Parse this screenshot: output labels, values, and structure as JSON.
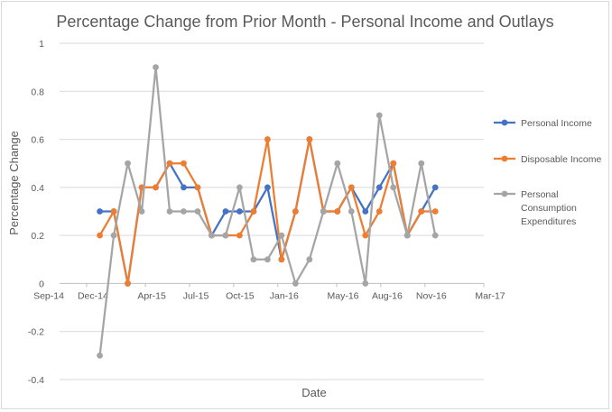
{
  "chart_data": {
    "type": "line",
    "title": "Percentage Change from Prior Month - Personal Income and Outlays",
    "xlabel": "Date",
    "ylabel": "Percentage Change",
    "ylim": [
      -0.4,
      1
    ],
    "yticks": [
      "1",
      "0.8",
      "0.6",
      "0.4",
      "0.2",
      "0",
      "-0.2",
      "-0.4"
    ],
    "xticks": [
      "Sep-14",
      "Dec-14",
      "Apr-15",
      "Jul-15",
      "Oct-15",
      "Jan-16",
      "May-16",
      "Aug-16",
      "Nov-16",
      "Mar-17"
    ],
    "grid": true,
    "legend_position": "right",
    "x": [
      "Jan-15",
      "Feb-15",
      "Mar-15",
      "Apr-15",
      "May-15",
      "Jun-15",
      "Jul-15",
      "Aug-15",
      "Sep-15",
      "Oct-15",
      "Nov-15",
      "Dec-15",
      "Jan-16",
      "Feb-16",
      "Mar-16",
      "Apr-16",
      "May-16",
      "Jun-16",
      "Jul-16",
      "Aug-16",
      "Sep-16",
      "Oct-16",
      "Nov-16",
      "Dec-16",
      "Jan-17",
      "Feb-17"
    ],
    "series": [
      {
        "name": "Personal Income",
        "color": "#4472C4",
        "values": [
          0.3,
          0.3,
          0.0,
          0.4,
          0.4,
          0.5,
          0.4,
          0.4,
          0.2,
          0.3,
          0.3,
          0.3,
          0.4,
          0.1,
          0.3,
          0.6,
          0.3,
          0.3,
          0.4,
          0.3,
          0.4,
          0.5,
          0.2,
          0.3,
          0.4,
          null
        ]
      },
      {
        "name": "Disposable Income",
        "color": "#ED7D31",
        "values": [
          0.2,
          0.3,
          0.0,
          0.4,
          0.4,
          0.5,
          0.5,
          0.4,
          0.2,
          0.2,
          0.2,
          0.3,
          0.6,
          0.1,
          0.3,
          0.6,
          0.3,
          0.3,
          0.4,
          0.2,
          0.3,
          0.5,
          0.2,
          0.3,
          0.3,
          null
        ]
      },
      {
        "name": "Personal Consumption Expenditures",
        "color": "#A5A5A5",
        "values": [
          -0.3,
          0.2,
          0.5,
          0.3,
          0.9,
          0.3,
          0.3,
          0.3,
          0.2,
          0.2,
          0.4,
          0.1,
          0.1,
          0.2,
          0.0,
          0.1,
          0.3,
          0.5,
          0.3,
          0.0,
          0.7,
          0.4,
          0.2,
          0.5,
          0.2,
          null
        ]
      }
    ]
  }
}
